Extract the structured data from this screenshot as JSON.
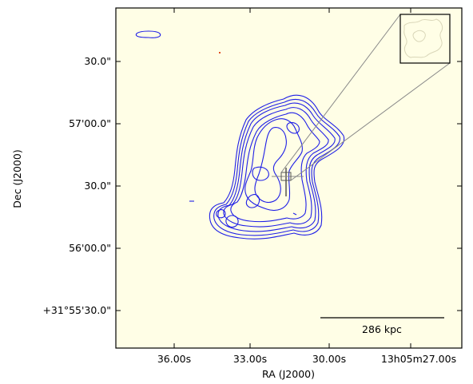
{
  "chart_data": {
    "type": "contour",
    "background_color": "#fffee6",
    "contour_color": "#1f1fe6",
    "xlabel": "RA (J2000)",
    "ylabel": "Dec (J2000)",
    "x_ticks": [
      "36.00s",
      "33.00s",
      "30.00s",
      "13h05m27.00s"
    ],
    "y_ticks": [
      "30.0\"",
      "57'00.0\"",
      "30.0\"",
      "56'00.0\"",
      "+31°55'30.0\""
    ],
    "scalebar": {
      "label": "286 kpc"
    },
    "inset": {
      "present": true
    },
    "grid": false
  }
}
